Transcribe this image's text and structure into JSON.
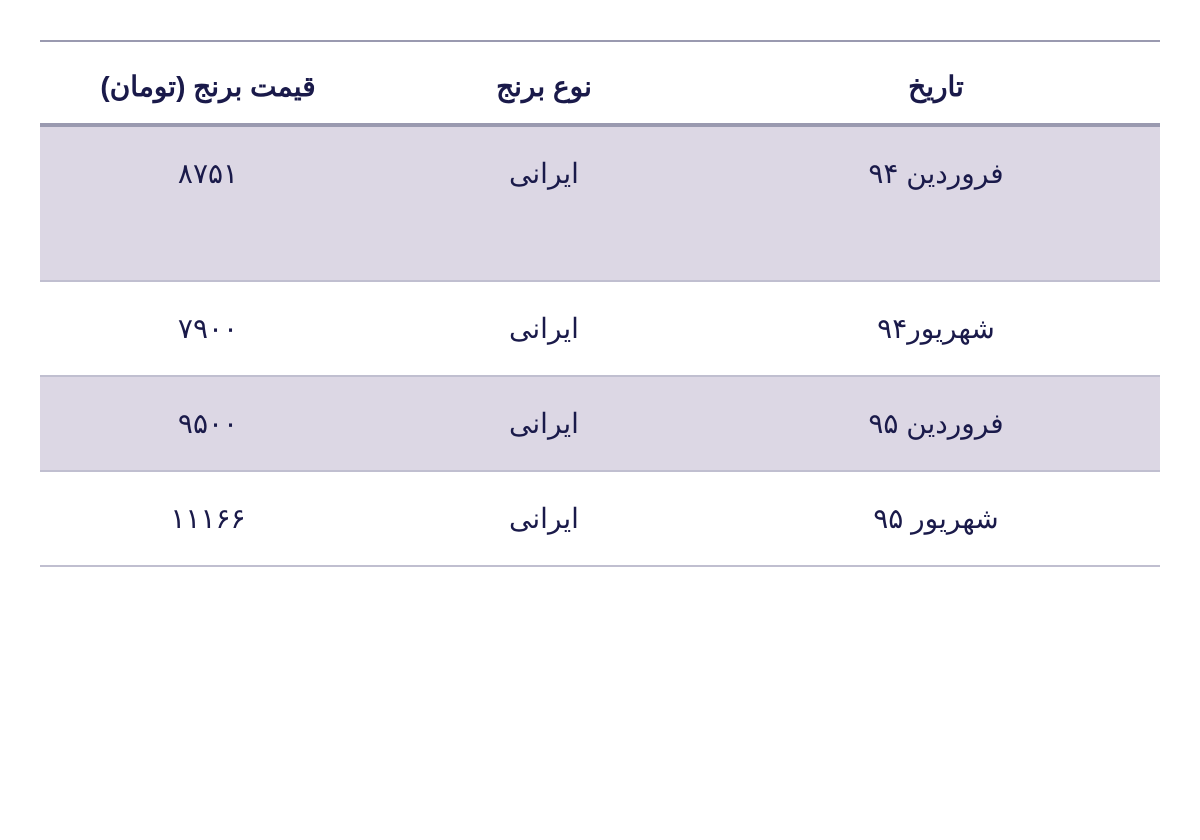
{
  "table": {
    "columns": [
      {
        "key": "date",
        "label": "تاریخ"
      },
      {
        "key": "type",
        "label": "نوع برنج"
      },
      {
        "key": "price",
        "label": "قیمت برنج (تومان)"
      }
    ],
    "rows": [
      {
        "date": "فروردین ۹۴",
        "type": "ایرانی",
        "price": "۸۷۵۱",
        "shaded": true,
        "tall": true
      },
      {
        "date": "شهریور۹۴",
        "type": "ایرانی",
        "price": "۷۹۰۰",
        "shaded": false,
        "tall": false
      },
      {
        "date": "فروردین ۹۵",
        "type": "ایرانی",
        "price": "۹۵۰۰",
        "shaded": true,
        "tall": false
      },
      {
        "date": "شهریور ۹۵",
        "type": "ایرانی",
        "price": "۱۱۱۶۶",
        "shaded": false,
        "tall": false
      }
    ],
    "colors": {
      "header_text": "#1a1a4a",
      "cell_text": "#1a1a4a",
      "shaded_bg": "#dcd7e4",
      "plain_bg": "#ffffff",
      "border": "#9a9ab0",
      "row_border": "#c0bfd0"
    },
    "font_size_pt": 21
  }
}
